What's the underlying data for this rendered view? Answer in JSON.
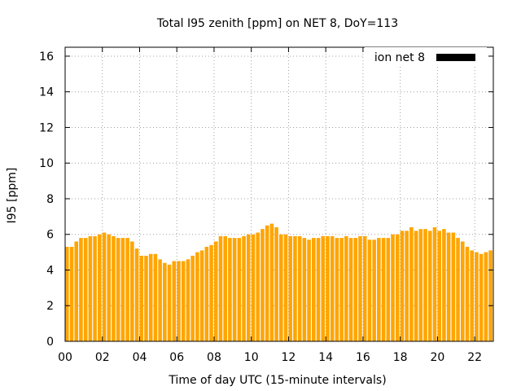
{
  "chart_data": {
    "type": "bar",
    "title": "Total I95 zenith [ppm] on NET 8, DoY=113",
    "xlabel": "Time of day UTC (15-minute intervals)",
    "ylabel": "I95 [ppm]",
    "xlim": [
      0,
      23
    ],
    "ylim": [
      0,
      16.5
    ],
    "x_ticks": [
      "00",
      "02",
      "04",
      "06",
      "08",
      "10",
      "12",
      "14",
      "16",
      "18",
      "20",
      "22"
    ],
    "y_ticks": [
      "0",
      "2",
      "4",
      "6",
      "8",
      "10",
      "12",
      "14",
      "16"
    ],
    "grid": true,
    "legend_position": "top-right",
    "series": [
      {
        "name": "ion net 8",
        "color": "#ffa500",
        "legend_color": "#000000",
        "values": [
          5.3,
          5.3,
          5.6,
          5.8,
          5.8,
          5.9,
          5.9,
          6.0,
          6.1,
          6.0,
          5.9,
          5.8,
          5.8,
          5.8,
          5.6,
          5.2,
          4.8,
          4.8,
          4.9,
          4.9,
          4.6,
          4.4,
          4.3,
          4.5,
          4.5,
          4.5,
          4.6,
          4.8,
          5.0,
          5.1,
          5.3,
          5.4,
          5.6,
          5.9,
          5.9,
          5.8,
          5.8,
          5.8,
          5.9,
          6.0,
          6.0,
          6.1,
          6.3,
          6.5,
          6.6,
          6.4,
          6.0,
          6.0,
          5.9,
          5.9,
          5.9,
          5.8,
          5.7,
          5.8,
          5.8,
          5.9,
          5.9,
          5.9,
          5.8,
          5.8,
          5.9,
          5.8,
          5.8,
          5.9,
          5.9,
          5.7,
          5.7,
          5.8,
          5.8,
          5.8,
          6.0,
          6.0,
          6.2,
          6.2,
          6.4,
          6.2,
          6.3,
          6.3,
          6.2,
          6.4,
          6.2,
          6.3,
          6.1,
          6.1,
          5.8,
          5.6,
          5.3,
          5.1,
          5.0,
          4.9,
          5.0,
          5.1
        ]
      }
    ]
  }
}
